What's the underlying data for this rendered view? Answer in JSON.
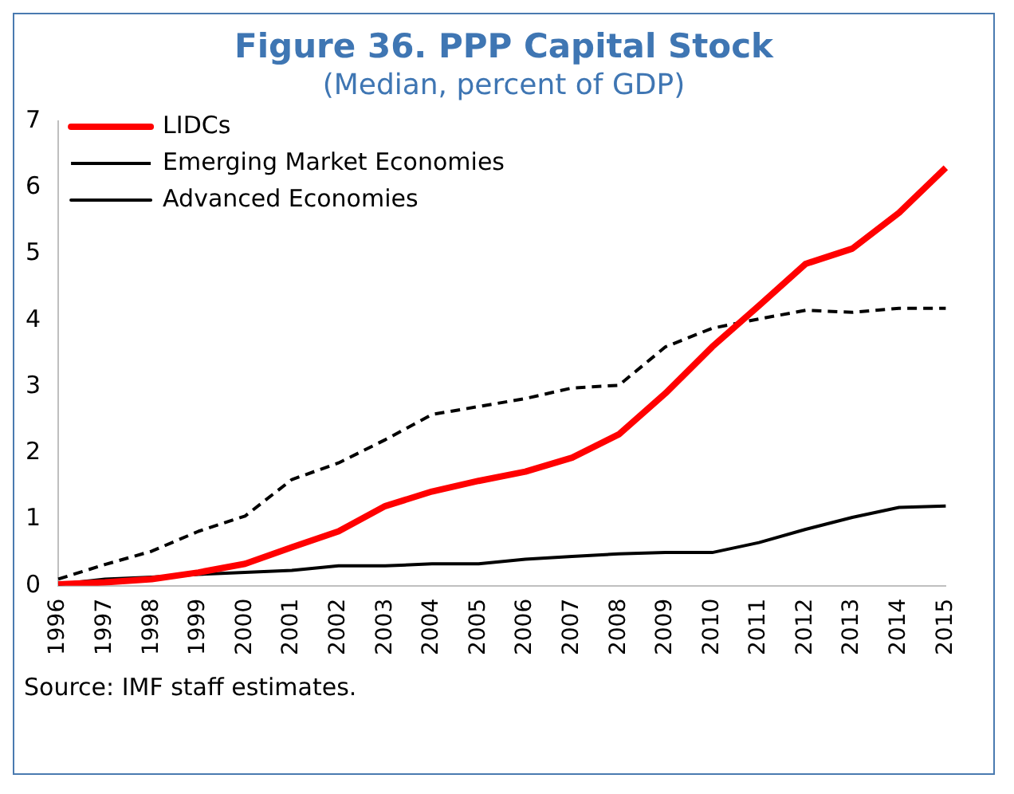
{
  "chart_data": {
    "type": "line",
    "title": "Figure 36. PPP Capital Stock",
    "subtitle": "(Median, percent of GDP)",
    "categories": [
      "1996",
      "1997",
      "1998",
      "1999",
      "2000",
      "2001",
      "2002",
      "2003",
      "2004",
      "2005",
      "2006",
      "2007",
      "2008",
      "2009",
      "2010",
      "2011",
      "2012",
      "2013",
      "2014",
      "2015"
    ],
    "series": [
      {
        "name": "LIDCs",
        "color": "#ff0000",
        "line_style": "solid",
        "values": [
          0.02,
          0.05,
          0.1,
          0.2,
          0.33,
          0.58,
          0.82,
          1.2,
          1.42,
          1.58,
          1.72,
          1.93,
          2.28,
          2.9,
          3.6,
          4.22,
          4.85,
          5.08,
          5.62,
          6.3
        ]
      },
      {
        "name": "Emerging Market Economies",
        "color": "#000000",
        "line_style": "dashed",
        "values": [
          0.1,
          0.32,
          0.52,
          0.82,
          1.05,
          1.6,
          1.85,
          2.2,
          2.58,
          2.7,
          2.82,
          2.98,
          3.02,
          3.6,
          3.88,
          4.02,
          4.15,
          4.12,
          4.18,
          4.18
        ]
      },
      {
        "name": "Advanced Economies",
        "color": "#000000",
        "line_style": "solid",
        "values": [
          0.02,
          0.1,
          0.13,
          0.17,
          0.2,
          0.23,
          0.3,
          0.3,
          0.33,
          0.33,
          0.4,
          0.44,
          0.48,
          0.5,
          0.5,
          0.65,
          0.85,
          1.03,
          1.18,
          1.2
        ]
      }
    ],
    "ylim": [
      0,
      7
    ],
    "yticks": [
      0,
      1,
      2,
      3,
      4,
      5,
      6,
      7
    ],
    "grid": false,
    "legend": "top left",
    "marker": "none",
    "annotations": [
      "Source: IMF staff estimates."
    ]
  }
}
